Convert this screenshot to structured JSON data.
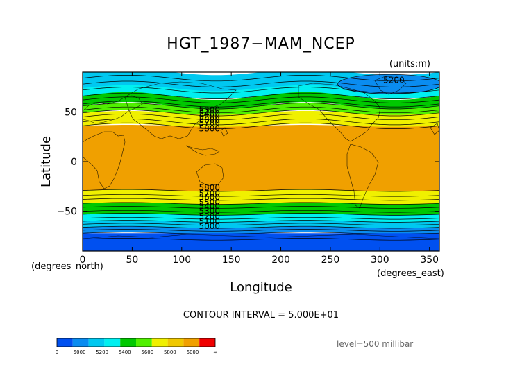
{
  "chart_data": {
    "type": "contour",
    "title": "HGT_1987−MAM_NCEP",
    "units_label": "(units:m)",
    "xlabel": "Longitude",
    "ylabel": "Latitude",
    "x_unit_label": "(degrees_east)",
    "y_unit_label": "(degrees_north)",
    "xlim": [
      0,
      360
    ],
    "ylim": [
      -90,
      90
    ],
    "x_ticks": [
      0,
      50,
      100,
      150,
      200,
      250,
      300,
      350
    ],
    "y_ticks": [
      50,
      0,
      -50
    ],
    "y_tick_labels": [
      "50",
      "0",
      "−50"
    ],
    "contour_interval_label": "CONTOUR INTERVAL = 5.000E+01",
    "level_label": "level=500 millibar",
    "contour_labels": [
      "5200",
      "5300",
      "5400",
      "5500",
      "5600",
      "5700",
      "5800",
      "5800",
      "5700",
      "5600",
      "5500",
      "5400",
      "5300",
      "5200",
      "5100",
      "5000"
    ],
    "colorbar": {
      "tick_labels": [
        "0",
        "5000",
        "5200",
        "5400",
        "5600",
        "5800",
        "6000",
        "∞"
      ],
      "colors": [
        "#0050f0",
        "#0a8cf0",
        "#00c8f0",
        "#00f0f0",
        "#00c800",
        "#50f000",
        "#f0f000",
        "#f0c800",
        "#f0a000",
        "#f00000"
      ]
    },
    "bands": [
      {
        "range": "<5200",
        "color": "#0050f0"
      },
      {
        "range": "5200-5300",
        "color": "#0a8cf0"
      },
      {
        "range": "5300-5400",
        "color": "#00c8f0"
      },
      {
        "range": "5400-5500",
        "color": "#00f0f0"
      },
      {
        "range": "5500-5600",
        "color": "#00c800"
      },
      {
        "range": "5600-5700",
        "color": "#50f000"
      },
      {
        "range": "5700-5800",
        "color": "#f0f000"
      },
      {
        "range": "5800-5900",
        "color": "#f0c800"
      },
      {
        "range": ">=5800",
        "color": "#f0a000"
      },
      {
        "range": ">=6000",
        "color": "#f00000"
      }
    ]
  }
}
